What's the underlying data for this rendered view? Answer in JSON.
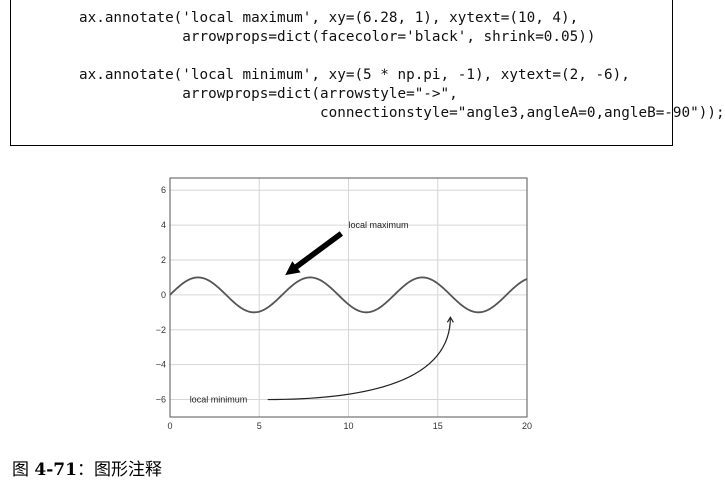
{
  "code": {
    "lines": [
      "ax.annotate('local maximum', xy=(6.28, 1), xytext=(10, 4),",
      "            arrowprops=dict(facecolor='black', shrink=0.05))",
      "",
      "ax.annotate('local minimum', xy=(5 * np.pi, -1), xytext=(2, -6),",
      "            arrowprops=dict(arrowstyle=\"->\",",
      "                            connectionstyle=\"angle3,angleA=0,angleB=-90\"));"
    ]
  },
  "chart_data": {
    "type": "line",
    "series": [
      {
        "function": "sin(x)",
        "x_range": [
          0,
          20
        ],
        "color": "#555555"
      }
    ],
    "xlim": [
      0,
      20
    ],
    "ylim": [
      -7,
      6.7
    ],
    "xticks": [
      0,
      5,
      10,
      15,
      20
    ],
    "yticks": [
      -6,
      -4,
      -2,
      0,
      2,
      4,
      6
    ],
    "grid": true,
    "annotations": [
      {
        "text": "local maximum",
        "xy": [
          6.28,
          1
        ],
        "xytext": [
          10,
          4
        ],
        "arrow": "filled"
      },
      {
        "text": "local minimum",
        "xy": [
          15.708,
          -1
        ],
        "xytext": [
          2,
          -6
        ],
        "arrow": "curved"
      }
    ]
  },
  "caption": {
    "label": "图 ",
    "number": "4-71",
    "text": "：图形注释"
  }
}
